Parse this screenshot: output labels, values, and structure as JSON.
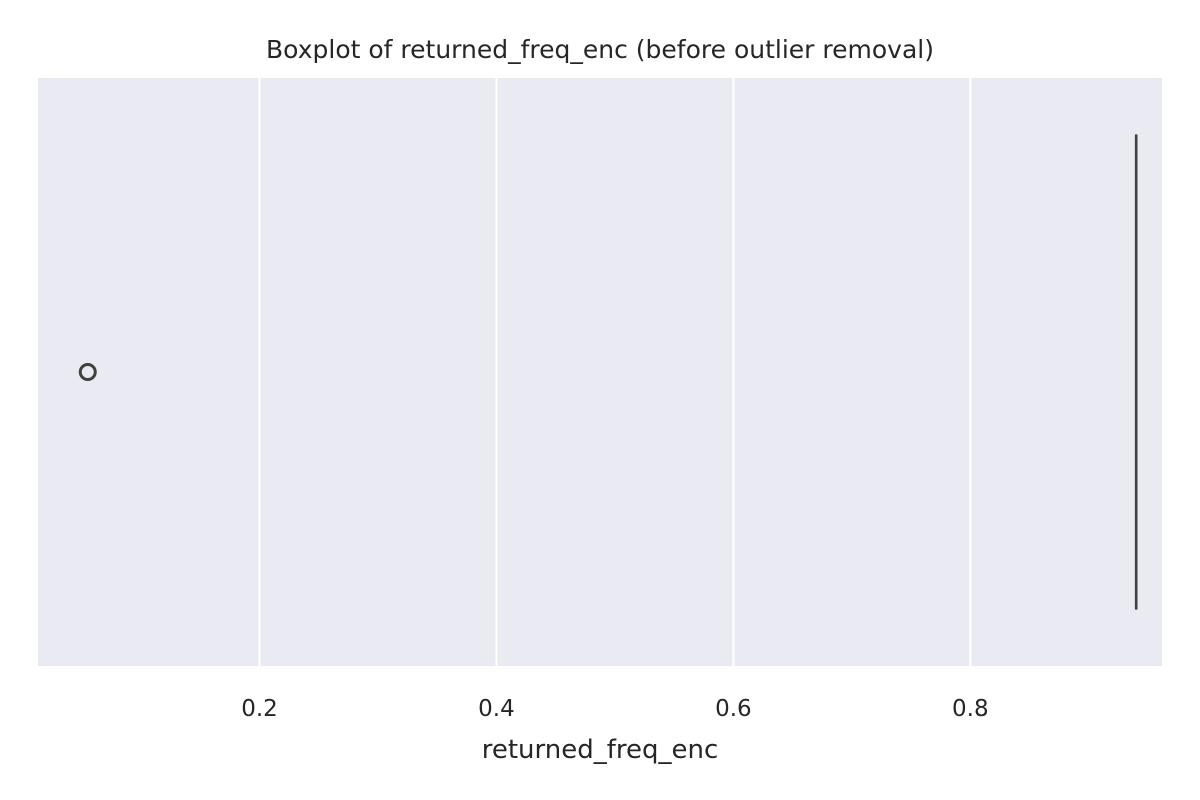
{
  "chart_data": {
    "type": "box",
    "title": "Boxplot of returned_freq_enc (before outlier removal)",
    "xlabel": "returned_freq_enc",
    "ylabel": "",
    "orientation": "horizontal",
    "xlim": [
      0.013,
      0.94
    ],
    "xticks": [
      0.2,
      0.4,
      0.6,
      0.8
    ],
    "xtick_labels": [
      "0.2",
      "0.4",
      "0.6",
      "0.8"
    ],
    "grid": true,
    "box": {
      "whisker_low": 0.94,
      "q1": 0.94,
      "median": 0.94,
      "q3": 0.94,
      "whisker_high": 0.94,
      "outliers": [
        0.055
      ]
    },
    "colors": {
      "plot_background": "#eaeaf2",
      "grid": "#ffffff",
      "box_line": "#404040",
      "text": "#262626"
    }
  }
}
